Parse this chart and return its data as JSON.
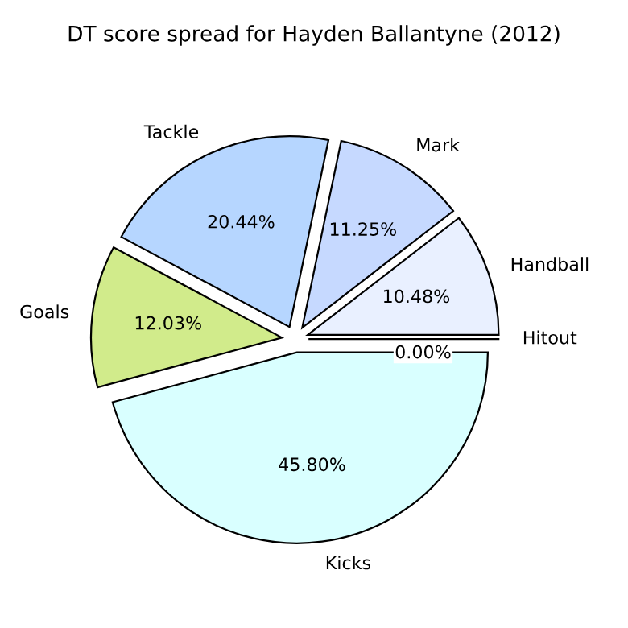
{
  "chart_data": {
    "type": "pie",
    "title": "DT score spread for Hayden Ballantyne (2012)",
    "categories": [
      "Hitout",
      "Handball",
      "Mark",
      "Tackle",
      "Goals",
      "Kicks"
    ],
    "values": [
      0.0,
      10.48,
      11.25,
      20.44,
      12.03,
      45.8
    ],
    "value_labels": [
      "0.00%",
      "10.48%",
      "11.25%",
      "20.44%",
      "12.03%",
      "45.80%"
    ],
    "colors": [
      "#f0f4ff",
      "#e9f0ff",
      "#c6d9ff",
      "#b6d6ff",
      "#d1eb8b",
      "#d9ffff"
    ]
  }
}
